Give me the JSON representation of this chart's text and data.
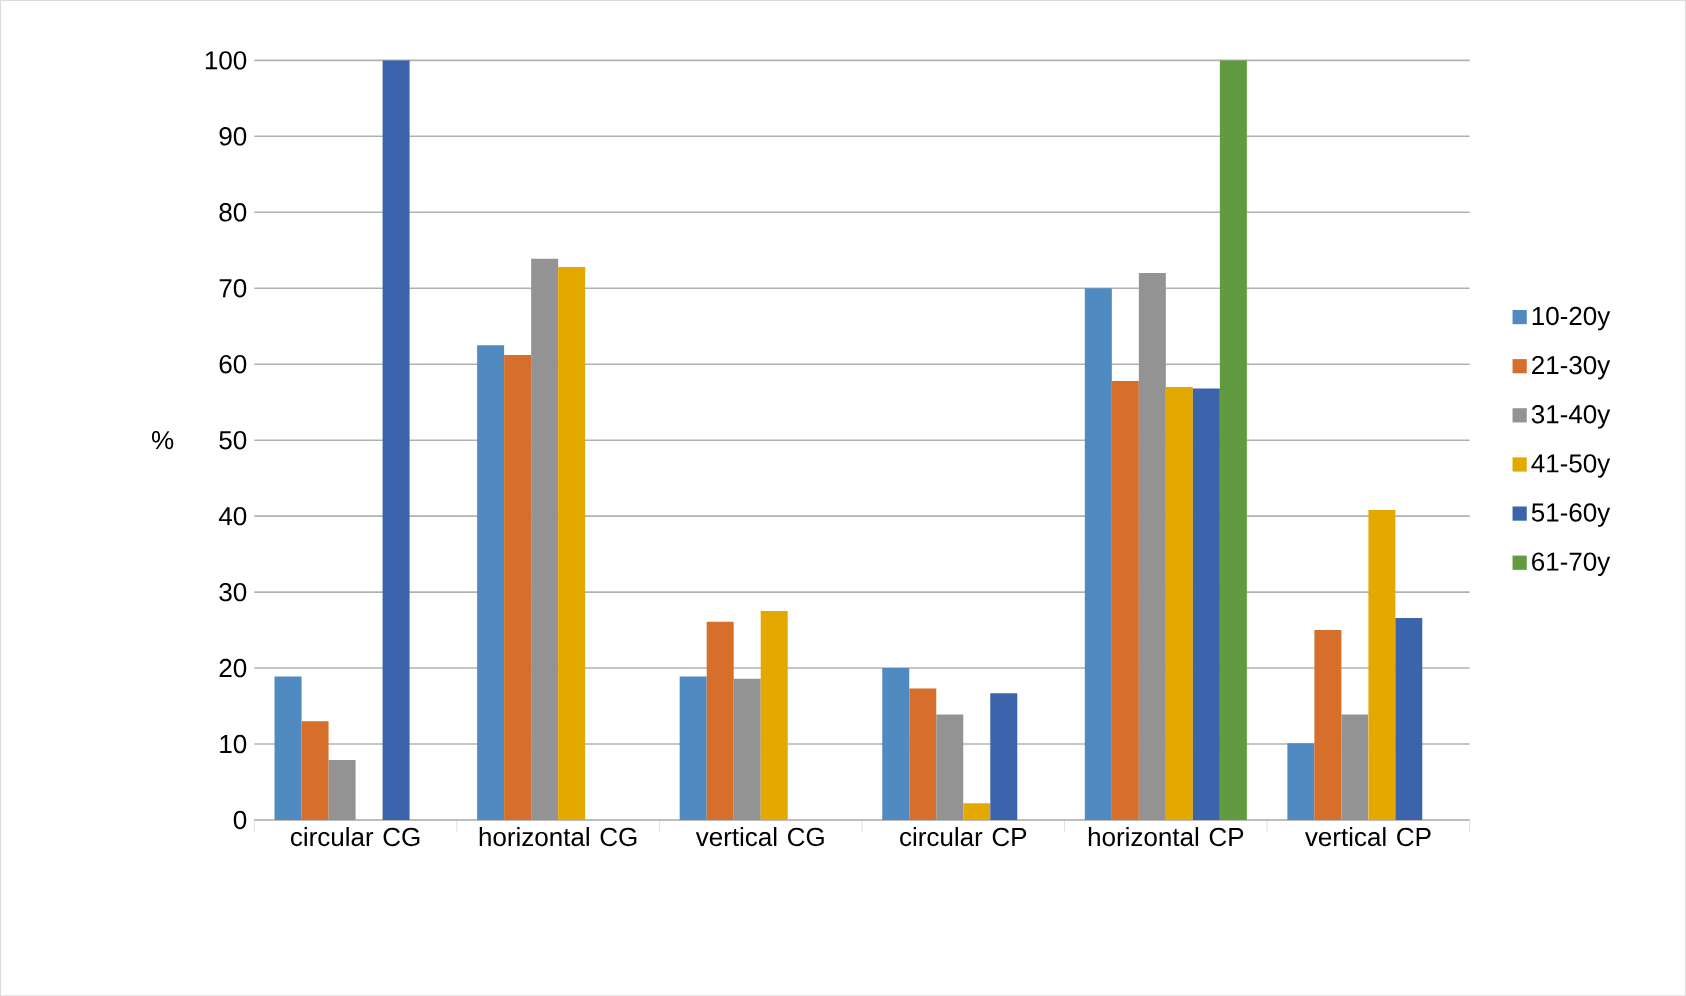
{
  "chart_data": {
    "type": "bar",
    "ylabel": "%",
    "categories": [
      "circular CG",
      "horizontal CG",
      "vertical CG",
      "circular CP",
      "horizontal CP",
      "vertical CP"
    ],
    "series": [
      {
        "name": "10-20y",
        "color": "#4f8ac0",
        "values": [
          18.9,
          62.5,
          18.9,
          20,
          70,
          10.1
        ]
      },
      {
        "name": "21-30y",
        "color": "#d56f2b",
        "values": [
          13,
          61.2,
          26.1,
          17.3,
          57.8,
          25
        ]
      },
      {
        "name": "31-40y",
        "color": "#939393",
        "values": [
          7.9,
          73.9,
          18.6,
          13.9,
          72,
          13.9
        ]
      },
      {
        "name": "41-50y",
        "color": "#e3a900",
        "values": [
          null,
          72.8,
          27.5,
          2.2,
          57,
          40.8
        ]
      },
      {
        "name": "51-60y",
        "color": "#3b64ad",
        "values": [
          100,
          null,
          null,
          16.7,
          56.8,
          26.6
        ]
      },
      {
        "name": "61-70y",
        "color": "#629a3f",
        "values": [
          null,
          null,
          null,
          null,
          100,
          null
        ]
      }
    ],
    "ylim": [
      0,
      100
    ],
    "yticks": [
      0,
      10,
      20,
      30,
      40,
      50,
      60,
      70,
      80,
      90,
      100
    ],
    "grid": "y",
    "legend": "right"
  }
}
